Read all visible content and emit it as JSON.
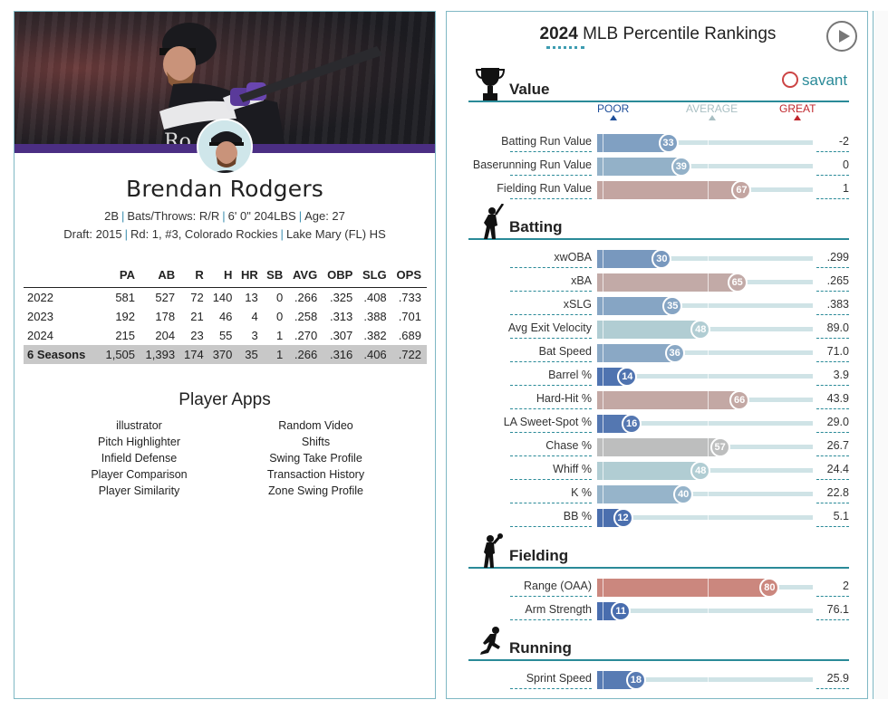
{
  "player": {
    "name": "Brendan Rodgers",
    "position": "2B",
    "bats_throws": "Bats/Throws: R/R",
    "height_weight": "6' 0\" 204LBS",
    "age": "Age: 27",
    "draft": "Draft: 2015",
    "draft_pick": "Rd: 1, #3, Colorado Rockies",
    "school": "Lake Mary (FL) HS"
  },
  "stats_table": {
    "headers": [
      "",
      "PA",
      "AB",
      "R",
      "H",
      "HR",
      "SB",
      "AVG",
      "OBP",
      "SLG",
      "OPS"
    ],
    "rows": [
      [
        "2022",
        "581",
        "527",
        "72",
        "140",
        "13",
        "0",
        ".266",
        ".325",
        ".408",
        ".733"
      ],
      [
        "2023",
        "192",
        "178",
        "21",
        "46",
        "4",
        "0",
        ".258",
        ".313",
        ".388",
        ".701"
      ],
      [
        "2024",
        "215",
        "204",
        "23",
        "55",
        "3",
        "1",
        ".270",
        ".307",
        ".382",
        ".689"
      ]
    ],
    "total": [
      "6 Seasons",
      "1,505",
      "1,393",
      "174",
      "370",
      "35",
      "1",
      ".266",
      ".316",
      ".406",
      ".722"
    ]
  },
  "player_apps": {
    "title": "Player Apps",
    "items": [
      "illustrator",
      "Random Video",
      "Pitch Highlighter",
      "Shifts",
      "Infield Defense",
      "Swing Take Profile",
      "Player Comparison",
      "Transaction History",
      "Player Similarity",
      "Zone Swing Profile"
    ]
  },
  "percentiles": {
    "title_year": "2024",
    "title_rest": "MLB Percentile Rankings",
    "brand": "savant",
    "scale": {
      "poor": "POOR",
      "average": "AVERAGE",
      "great": "GREAT"
    },
    "colors": {
      "poor": "#3a5fa8",
      "average": "#b8d3d6",
      "great": "#d65a4a",
      "scale_poor": "#1f4f9a",
      "scale_avg": "#a9bfc3",
      "scale_great": "#c0262c",
      "accent": "#2a8a98"
    },
    "sections": [
      {
        "name": "Value",
        "icon": "trophy-icon",
        "metrics": [
          {
            "label": "Batting Run Value",
            "pct": 33,
            "value": "-2"
          },
          {
            "label": "Baserunning Run Value",
            "pct": 39,
            "value": "0"
          },
          {
            "label": "Fielding Run Value",
            "pct": 67,
            "value": "1"
          }
        ]
      },
      {
        "name": "Batting",
        "icon": "batter-icon",
        "metrics": [
          {
            "label": "xwOBA",
            "pct": 30,
            "value": ".299"
          },
          {
            "label": "xBA",
            "pct": 65,
            "value": ".265"
          },
          {
            "label": "xSLG",
            "pct": 35,
            "value": ".383"
          },
          {
            "label": "Avg Exit Velocity",
            "pct": 48,
            "value": "89.0"
          },
          {
            "label": "Bat Speed",
            "pct": 36,
            "value": "71.0"
          },
          {
            "label": "Barrel %",
            "pct": 14,
            "value": "3.9"
          },
          {
            "label": "Hard-Hit %",
            "pct": 66,
            "value": "43.9"
          },
          {
            "label": "LA Sweet-Spot %",
            "pct": 16,
            "value": "29.0"
          },
          {
            "label": "Chase %",
            "pct": 57,
            "value": "26.7"
          },
          {
            "label": "Whiff %",
            "pct": 48,
            "value": "24.4"
          },
          {
            "label": "K %",
            "pct": 40,
            "value": "22.8"
          },
          {
            "label": "BB %",
            "pct": 12,
            "value": "5.1"
          }
        ]
      },
      {
        "name": "Fielding",
        "icon": "fielder-icon",
        "metrics": [
          {
            "label": "Range (OAA)",
            "pct": 80,
            "value": "2"
          },
          {
            "label": "Arm Strength",
            "pct": 11,
            "value": "76.1"
          }
        ]
      },
      {
        "name": "Running",
        "icon": "runner-icon",
        "metrics": [
          {
            "label": "Sprint Speed",
            "pct": 18,
            "value": "25.9"
          }
        ]
      }
    ]
  }
}
